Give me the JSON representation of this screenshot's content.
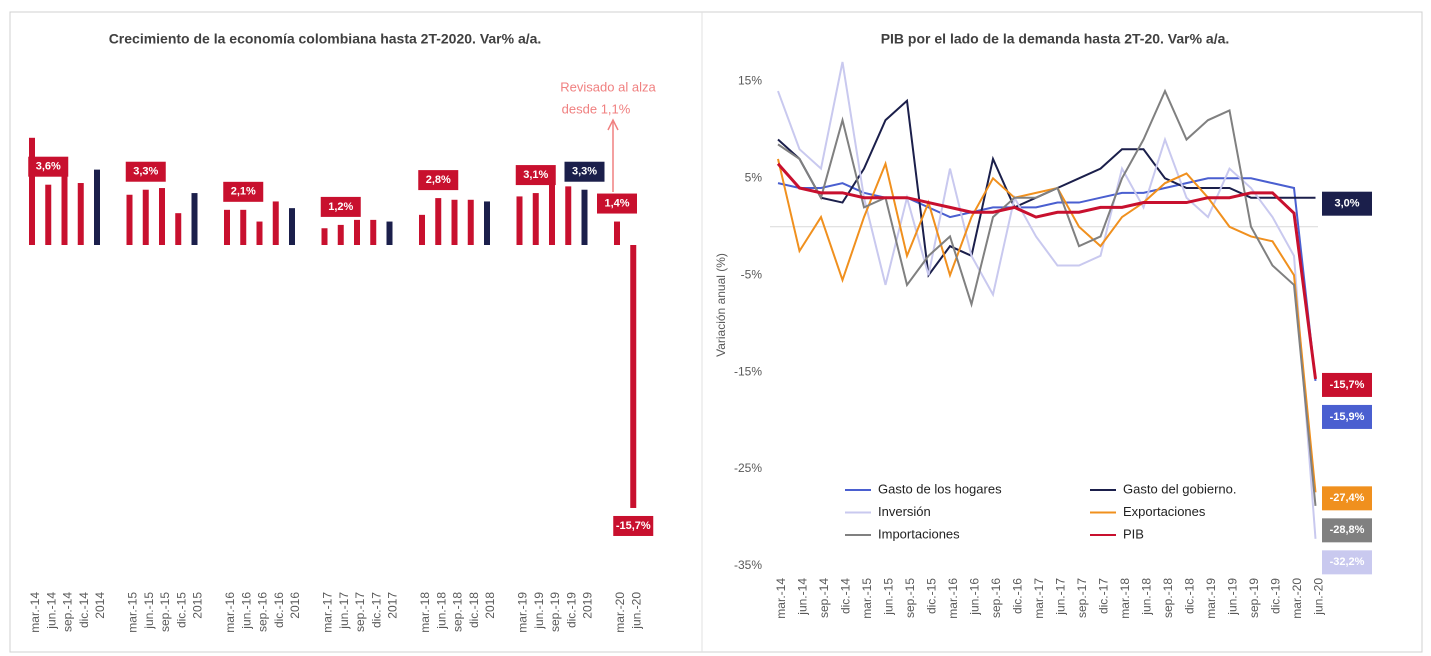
{
  "chart_data": [
    {
      "type": "bar",
      "title": "Crecimiento de la economía colombiana hasta 2T-2020. Var% a/a.",
      "annotation": [
        "Revisado al alza",
        "desde 1,1%"
      ],
      "categories": [
        "mar.-14",
        "jun.-14",
        "sep.-14",
        "dic.-14",
        "2014",
        null,
        "mar.-15",
        "jun.-15",
        "sep.-15",
        "dic.-15",
        "2015",
        null,
        "mar.-16",
        "jun.-16",
        "sep.-16",
        "dic.-16",
        "2016",
        null,
        "mar.-17",
        "jun.-17",
        "sep.-17",
        "dic.-17",
        "2017",
        null,
        "mar.-18",
        "jun.-18",
        "sep.-18",
        "dic.-18",
        "2018",
        null,
        "mar.-19",
        "jun.-19",
        "sep.-19",
        "dic.-19",
        "2019",
        null,
        "mar.-20",
        "jun.-20"
      ],
      "values": [
        6.4,
        3.6,
        4.2,
        3.7,
        4.5,
        null,
        3.0,
        3.3,
        3.4,
        1.9,
        3.1,
        null,
        2.1,
        2.1,
        1.4,
        2.6,
        2.2,
        null,
        1.0,
        1.2,
        1.5,
        1.5,
        1.4,
        null,
        1.8,
        2.8,
        2.7,
        2.7,
        2.6,
        null,
        2.9,
        3.1,
        3.8,
        3.5,
        3.3,
        null,
        1.4,
        -15.7
      ],
      "value_labels": [
        null,
        "3,6%",
        null,
        null,
        null,
        null,
        null,
        "3,3%",
        null,
        null,
        null,
        null,
        null,
        "2,1%",
        null,
        null,
        null,
        null,
        null,
        "1,2%",
        null,
        null,
        null,
        null,
        null,
        "2,8%",
        null,
        null,
        null,
        null,
        null,
        "3,1%",
        null,
        null,
        "3,3%",
        null,
        "1,4%",
        "-15,7%"
      ],
      "colors": [
        "#c8102e",
        "#c8102e",
        "#c8102e",
        "#c8102e",
        "#1b1f4b",
        null,
        "#c8102e",
        "#c8102e",
        "#c8102e",
        "#c8102e",
        "#1b1f4b",
        null,
        "#c8102e",
        "#c8102e",
        "#c8102e",
        "#c8102e",
        "#1b1f4b",
        null,
        "#c8102e",
        "#c8102e",
        "#c8102e",
        "#c8102e",
        "#1b1f4b",
        null,
        "#c8102e",
        "#c8102e",
        "#c8102e",
        "#c8102e",
        "#1b1f4b",
        null,
        "#c8102e",
        "#c8102e",
        "#c8102e",
        "#c8102e",
        "#1b1f4b",
        null,
        "#c8102e",
        "#c8102e"
      ]
    },
    {
      "type": "line",
      "title": "PIB por el lado de la demanda hasta 2T-20. Var% a/a.",
      "y_label": "Variación anual (%)",
      "legend": "lower left",
      "grid": false,
      "ylim": [
        -35,
        17
      ],
      "yticks": [
        {
          "value": -35,
          "label": "-35%"
        },
        {
          "value": -25,
          "label": "-25%"
        },
        {
          "value": -15,
          "label": "-15%"
        },
        {
          "value": -5,
          "label": "-5%"
        },
        {
          "value": 5,
          "label": "5%"
        },
        {
          "value": 15,
          "label": "15%"
        }
      ],
      "categories": [
        "mar.-14",
        "jun.-14",
        "sep.-14",
        "dic.-14",
        "mar.-15",
        "jun.-15",
        "sep.-15",
        "dic.-15",
        "mar.-16",
        "jun.-16",
        "sep.-16",
        "dic.-16",
        "mar.-17",
        "jun.-17",
        "sep.-17",
        "dic.-17",
        "mar.-18",
        "jun.-18",
        "sep.-18",
        "dic.-18",
        "mar.-19",
        "jun.-19",
        "sep.-19",
        "dic.-19",
        "mar.-20",
        "jun.-20"
      ],
      "series": [
        {
          "name": "Gasto de los hogares",
          "color": "#4a5fd0",
          "values": [
            4.5,
            4,
            4,
            4.5,
            3.5,
            3,
            3,
            2,
            1,
            1.5,
            2,
            2,
            2,
            2.5,
            2.5,
            3,
            3.5,
            3.5,
            4,
            4.5,
            5,
            5,
            5,
            4.5,
            4,
            -15.9
          ],
          "value_labels": [
            null,
            null,
            null,
            null,
            null,
            null,
            null,
            null,
            null,
            null,
            null,
            null,
            null,
            null,
            null,
            null,
            null,
            null,
            null,
            null,
            null,
            null,
            null,
            null,
            null,
            "-15,9%"
          ]
        },
        {
          "name": "Gasto del gobierno.",
          "color": "#1b1f4b",
          "values": [
            9,
            7,
            3,
            2.5,
            6,
            11,
            13,
            -5,
            -2,
            -3,
            7,
            2,
            3,
            4,
            5,
            6,
            8,
            8,
            5,
            4,
            4,
            4,
            3,
            3,
            3,
            3.0
          ],
          "value_labels": [
            null,
            null,
            null,
            null,
            null,
            null,
            null,
            null,
            null,
            null,
            null,
            null,
            null,
            null,
            null,
            null,
            null,
            null,
            null,
            null,
            null,
            null,
            null,
            null,
            null,
            "3,0%"
          ]
        },
        {
          "name": "Inversión",
          "color": "#c9c9ef",
          "values": [
            14,
            8,
            6,
            17,
            3,
            -6,
            3,
            -5,
            6,
            -3,
            -7,
            3,
            -1,
            -4,
            -4,
            -3,
            6,
            2,
            9,
            3,
            1,
            6,
            4,
            1,
            -3,
            -32.2
          ],
          "value_labels": [
            null,
            null,
            null,
            null,
            null,
            null,
            null,
            null,
            null,
            null,
            null,
            null,
            null,
            null,
            null,
            null,
            null,
            null,
            null,
            null,
            null,
            null,
            null,
            null,
            null,
            "-32,2%"
          ]
        },
        {
          "name": "Exportaciones",
          "color": "#f0901e",
          "values": [
            7,
            -2.5,
            1,
            -5.5,
            1,
            6.5,
            -3,
            2.5,
            -5,
            1,
            5,
            3,
            3.5,
            4,
            0,
            -2,
            1,
            2.5,
            4.5,
            5.5,
            3,
            0,
            -1,
            -1.5,
            -5,
            -27.4
          ],
          "value_labels": [
            null,
            null,
            null,
            null,
            null,
            null,
            null,
            null,
            null,
            null,
            null,
            null,
            null,
            null,
            null,
            null,
            null,
            null,
            null,
            null,
            null,
            null,
            null,
            null,
            null,
            "-27,4%"
          ]
        },
        {
          "name": "Importaciones",
          "color": "#808080",
          "values": [
            8.5,
            7,
            3,
            11,
            2,
            3,
            -6,
            -3,
            -1,
            -8,
            1,
            3,
            3,
            4,
            -2,
            -1,
            5,
            9,
            14,
            9,
            11,
            12,
            0,
            -4,
            -6,
            -28.8
          ],
          "value_labels": [
            null,
            null,
            null,
            null,
            null,
            null,
            null,
            null,
            null,
            null,
            null,
            null,
            null,
            null,
            null,
            null,
            null,
            null,
            null,
            null,
            null,
            null,
            null,
            null,
            null,
            "-28,8%"
          ]
        },
        {
          "name": "PIB",
          "color": "#c8102e",
          "values": [
            6.5,
            4,
            3.5,
            3.5,
            3,
            3,
            3,
            2.5,
            2,
            1.5,
            1.5,
            2,
            1,
            1.5,
            1.5,
            2,
            2,
            2.5,
            2.5,
            2.5,
            3,
            3,
            3.5,
            3.5,
            1.4,
            -15.7
          ],
          "value_labels": [
            null,
            null,
            null,
            null,
            null,
            null,
            null,
            null,
            null,
            null,
            null,
            null,
            null,
            null,
            null,
            null,
            null,
            null,
            null,
            null,
            null,
            null,
            null,
            null,
            null,
            "-15,7%"
          ]
        }
      ]
    }
  ]
}
